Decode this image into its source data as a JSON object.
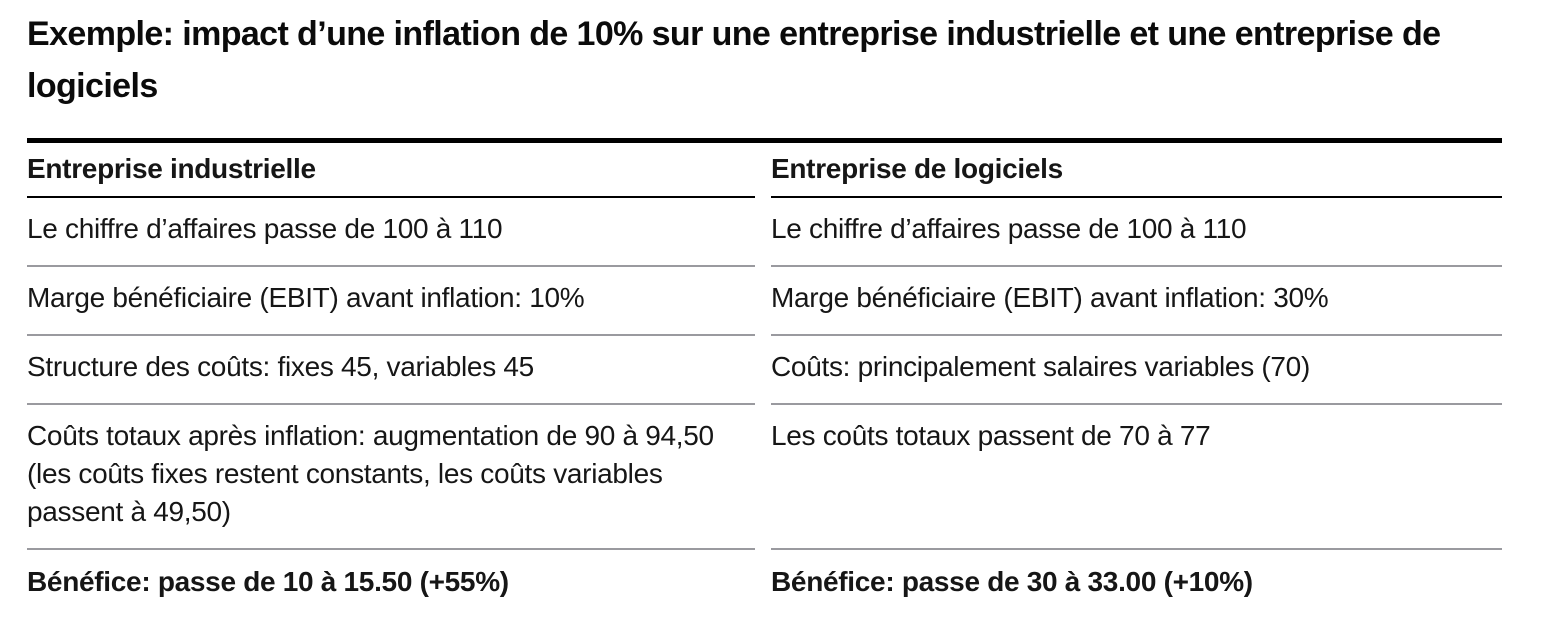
{
  "title": "Exemple: impact d’une inflation de 10% sur une entreprise industrielle et une entreprise de logiciels",
  "table": {
    "columns": [
      {
        "header": "Entreprise industrielle",
        "rows": [
          "Le chiffre d’affaires passe de 100 à 110",
          "Marge bénéficiaire (EBIT) avant inflation: 10%",
          "Structure des coûts: fixes 45, variables 45",
          "Coûts totaux après inflation: augmentation de 90 à 94,50 (les coûts fixes restent constants, les coûts variables passent à 49,50)"
        ],
        "footer": "Bénéfice: passe de 10 à 15.50 (+55%)"
      },
      {
        "header": "Entreprise de logiciels",
        "rows": [
          "Le chiffre d’affaires passe de 100 à 110",
          "Marge bénéficiaire (EBIT) avant inflation: 30%",
          "Coûts: principalement salaires variables (70)",
          "Les coûts totaux passent de 70 à 77"
        ],
        "footer": "Bénéfice: passe de 30 à 33.00 (+10%)"
      }
    ]
  },
  "colors": {
    "background": "#ffffff",
    "text": "#161616",
    "rule_heavy": "#000000",
    "rule_light": "#9a9a9f"
  }
}
